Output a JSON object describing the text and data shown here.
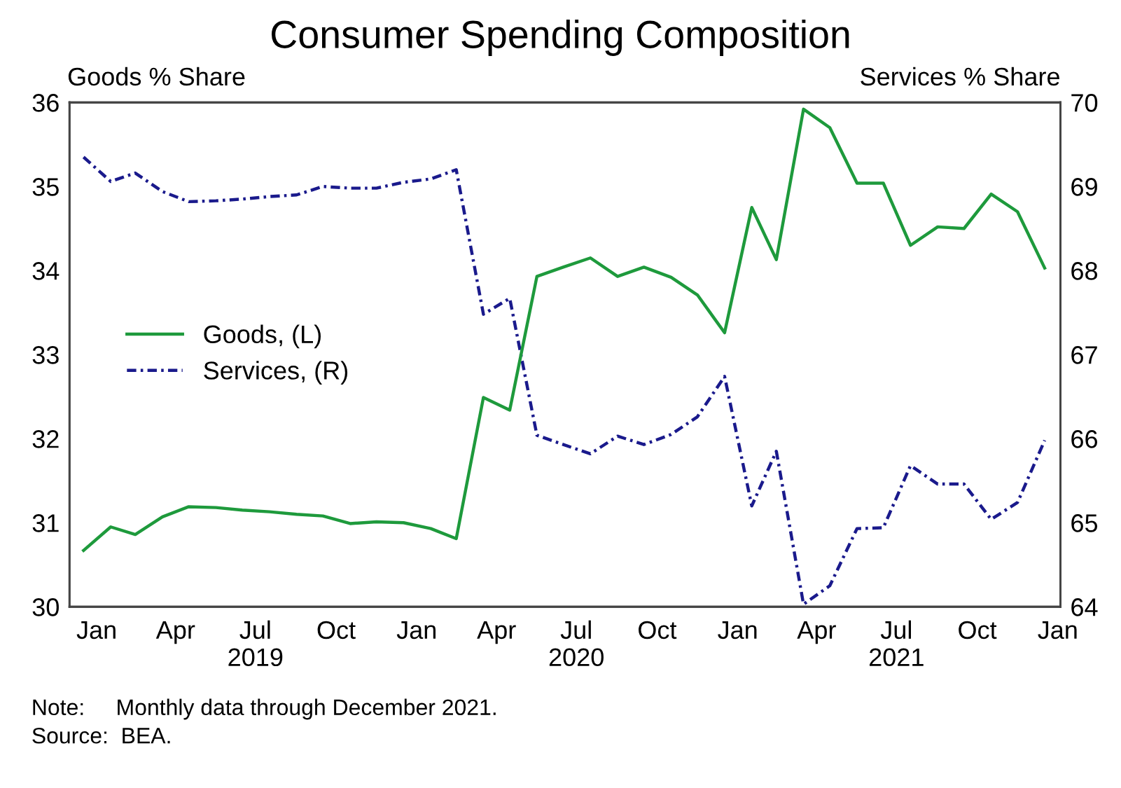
{
  "chart_data": {
    "type": "line",
    "title": "Consumer Spending Composition",
    "ylabel": "Goods % Share",
    "y2label": "Services % Share",
    "x": [
      "2018-12-31",
      "2019-01-31",
      "2019-02-28",
      "2019-03-31",
      "2019-04-30",
      "2019-05-31",
      "2019-06-30",
      "2019-07-31",
      "2019-08-31",
      "2019-09-30",
      "2019-10-31",
      "2019-11-30",
      "2019-12-31",
      "2020-01-31",
      "2020-02-29",
      "2020-03-31",
      "2020-04-30",
      "2020-05-31",
      "2020-06-30",
      "2020-07-31",
      "2020-08-31",
      "2020-09-30",
      "2020-10-31",
      "2020-11-30",
      "2020-12-31",
      "2021-01-31",
      "2021-02-28",
      "2021-03-31",
      "2021-04-30",
      "2021-05-31",
      "2021-06-30",
      "2021-07-31",
      "2021-08-31",
      "2021-09-30",
      "2021-10-31",
      "2021-11-30",
      "2021-12-31"
    ],
    "series": [
      {
        "name": "Goods, (L)",
        "color": "#1e9a3c",
        "line_style": "solid",
        "values": [
          30.67,
          30.95,
          30.86,
          31.07,
          31.19,
          31.18,
          31.15,
          31.13,
          31.1,
          31.08,
          30.99,
          31.01,
          31.0,
          30.93,
          30.81,
          32.49,
          32.34,
          33.93,
          34.04,
          34.15,
          33.93,
          34.04,
          33.92,
          33.71,
          33.26,
          34.75,
          34.13,
          35.92,
          35.7,
          35.04,
          35.04,
          34.3,
          34.52,
          34.5,
          34.91,
          34.7,
          34.03
        ]
      },
      {
        "name": "Services, (R)",
        "color": "#1a1a8c",
        "line_style": "dashed",
        "axis": "y2",
        "values": [
          69.35,
          69.06,
          69.16,
          68.94,
          68.82,
          68.83,
          68.85,
          68.88,
          68.9,
          69.0,
          68.98,
          68.98,
          69.05,
          69.09,
          69.2,
          67.48,
          67.67,
          66.04,
          65.93,
          65.82,
          66.03,
          65.93,
          66.05,
          66.26,
          66.74,
          65.2,
          65.85,
          64.03,
          64.25,
          64.93,
          64.94,
          65.68,
          65.46,
          65.46,
          65.04,
          65.24,
          65.98
        ]
      }
    ],
    "xlim": [
      "2018-12-15",
      "2022-01-18"
    ],
    "xticks": [
      {
        "value": "2019-01-15",
        "label": "Jan"
      },
      {
        "value": "2019-04-15",
        "label": "Apr"
      },
      {
        "value": "2019-07-15",
        "label": "Jul\n2019"
      },
      {
        "value": "2019-10-15",
        "label": "Oct"
      },
      {
        "value": "2020-01-15",
        "label": "Jan"
      },
      {
        "value": "2020-04-15",
        "label": "Apr"
      },
      {
        "value": "2020-07-15",
        "label": "Jul\n2020"
      },
      {
        "value": "2020-10-15",
        "label": "Oct"
      },
      {
        "value": "2021-01-15",
        "label": "Jan"
      },
      {
        "value": "2021-04-15",
        "label": "Apr"
      },
      {
        "value": "2021-07-15",
        "label": "Jul\n2021"
      },
      {
        "value": "2021-10-15",
        "label": "Oct"
      },
      {
        "value": "2022-01-15",
        "label": "Jan"
      }
    ],
    "ylim": [
      30,
      36
    ],
    "yticks": [
      30,
      31,
      32,
      33,
      34,
      35,
      36
    ],
    "y2lim": [
      64,
      70
    ],
    "y2ticks": [
      64,
      65,
      66,
      67,
      68,
      69,
      70
    ],
    "legend": "center left",
    "grid": false,
    "marker": "none",
    "annotations": [
      "Note:     Monthly data through December 2021.",
      "Source:  BEA."
    ]
  }
}
